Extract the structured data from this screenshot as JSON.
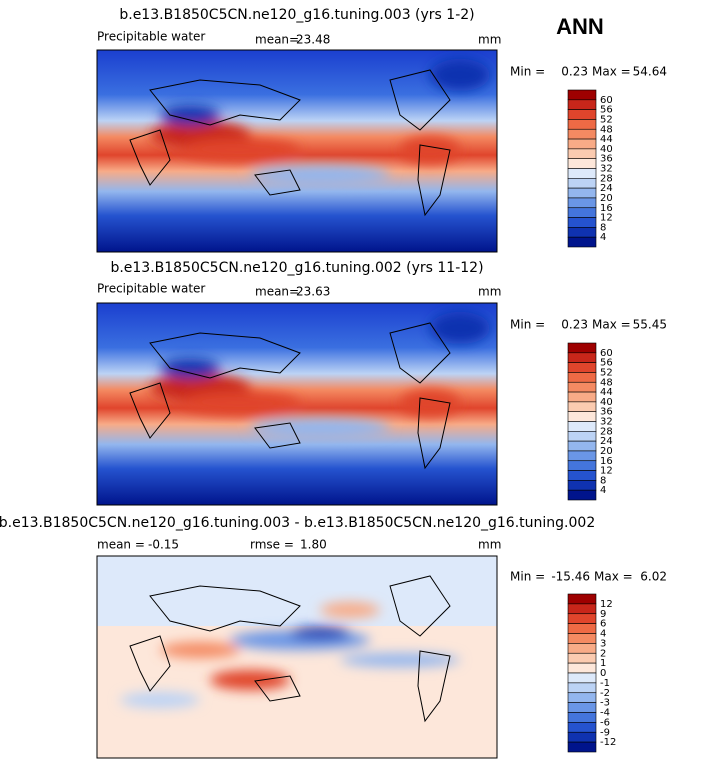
{
  "season": "ANN",
  "panels": [
    {
      "title": "b.e13.B1850C5CN.ne120_g16.tuning.003 (yrs 1-2)",
      "variable": "Precipitable water",
      "mean_label": "mean=",
      "mean": "23.48",
      "units": "mm",
      "min_label": "Min =",
      "min": "0.23",
      "max_label": "Max =",
      "max": "54.64",
      "colorbar": {
        "levels": [
          "60",
          "56",
          "52",
          "48",
          "44",
          "40",
          "36",
          "32",
          "28",
          "24",
          "20",
          "16",
          "12",
          "8",
          "4"
        ],
        "colors": [
          "#9e0000",
          "#c8261a",
          "#e0452c",
          "#ee6a45",
          "#f48a62",
          "#f8ab87",
          "#fbcbb0",
          "#fde7da",
          "#dde9fa",
          "#bcd3f5",
          "#93b6ee",
          "#6a96e6",
          "#4475dc",
          "#2553cf",
          "#0f32b0",
          "#00148c"
        ]
      }
    },
    {
      "title": "b.e13.B1850C5CN.ne120_g16.tuning.002 (yrs 11-12)",
      "variable": "Precipitable water",
      "mean_label": "mean=",
      "mean": "23.63",
      "units": "mm",
      "min_label": "Min =",
      "min": "0.23",
      "max_label": "Max =",
      "max": "55.45",
      "colorbar": {
        "levels": [
          "60",
          "56",
          "52",
          "48",
          "44",
          "40",
          "36",
          "32",
          "28",
          "24",
          "20",
          "16",
          "12",
          "8",
          "4"
        ],
        "colors": [
          "#9e0000",
          "#c8261a",
          "#e0452c",
          "#ee6a45",
          "#f48a62",
          "#f8ab87",
          "#fbcbb0",
          "#fde7da",
          "#dde9fa",
          "#bcd3f5",
          "#93b6ee",
          "#6a96e6",
          "#4475dc",
          "#2553cf",
          "#0f32b0",
          "#00148c"
        ]
      }
    },
    {
      "title": "b.e13.B1850C5CN.ne120_g16.tuning.003 - b.e13.B1850C5CN.ne120_g16.tuning.002",
      "mean_label": "mean =",
      "mean": "-0.15",
      "rmse_label": "rmse =",
      "rmse": "1.80",
      "units": "mm",
      "min_label": "Min =",
      "min": "-15.46",
      "max_label": "Max =",
      "max": "6.02",
      "colorbar": {
        "levels": [
          "12",
          "9",
          "6",
          "4",
          "3",
          "2",
          "1",
          "0",
          "-1",
          "-2",
          "-3",
          "-4",
          "-6",
          "-9",
          "-12"
        ],
        "colors": [
          "#9e0000",
          "#c8261a",
          "#e0452c",
          "#ee6a45",
          "#f48a62",
          "#f8ab87",
          "#fbcbb0",
          "#fde7da",
          "#dde9fa",
          "#bcd3f5",
          "#93b6ee",
          "#6a96e6",
          "#4475dc",
          "#2553cf",
          "#0f32b0",
          "#00148c"
        ]
      }
    }
  ]
}
